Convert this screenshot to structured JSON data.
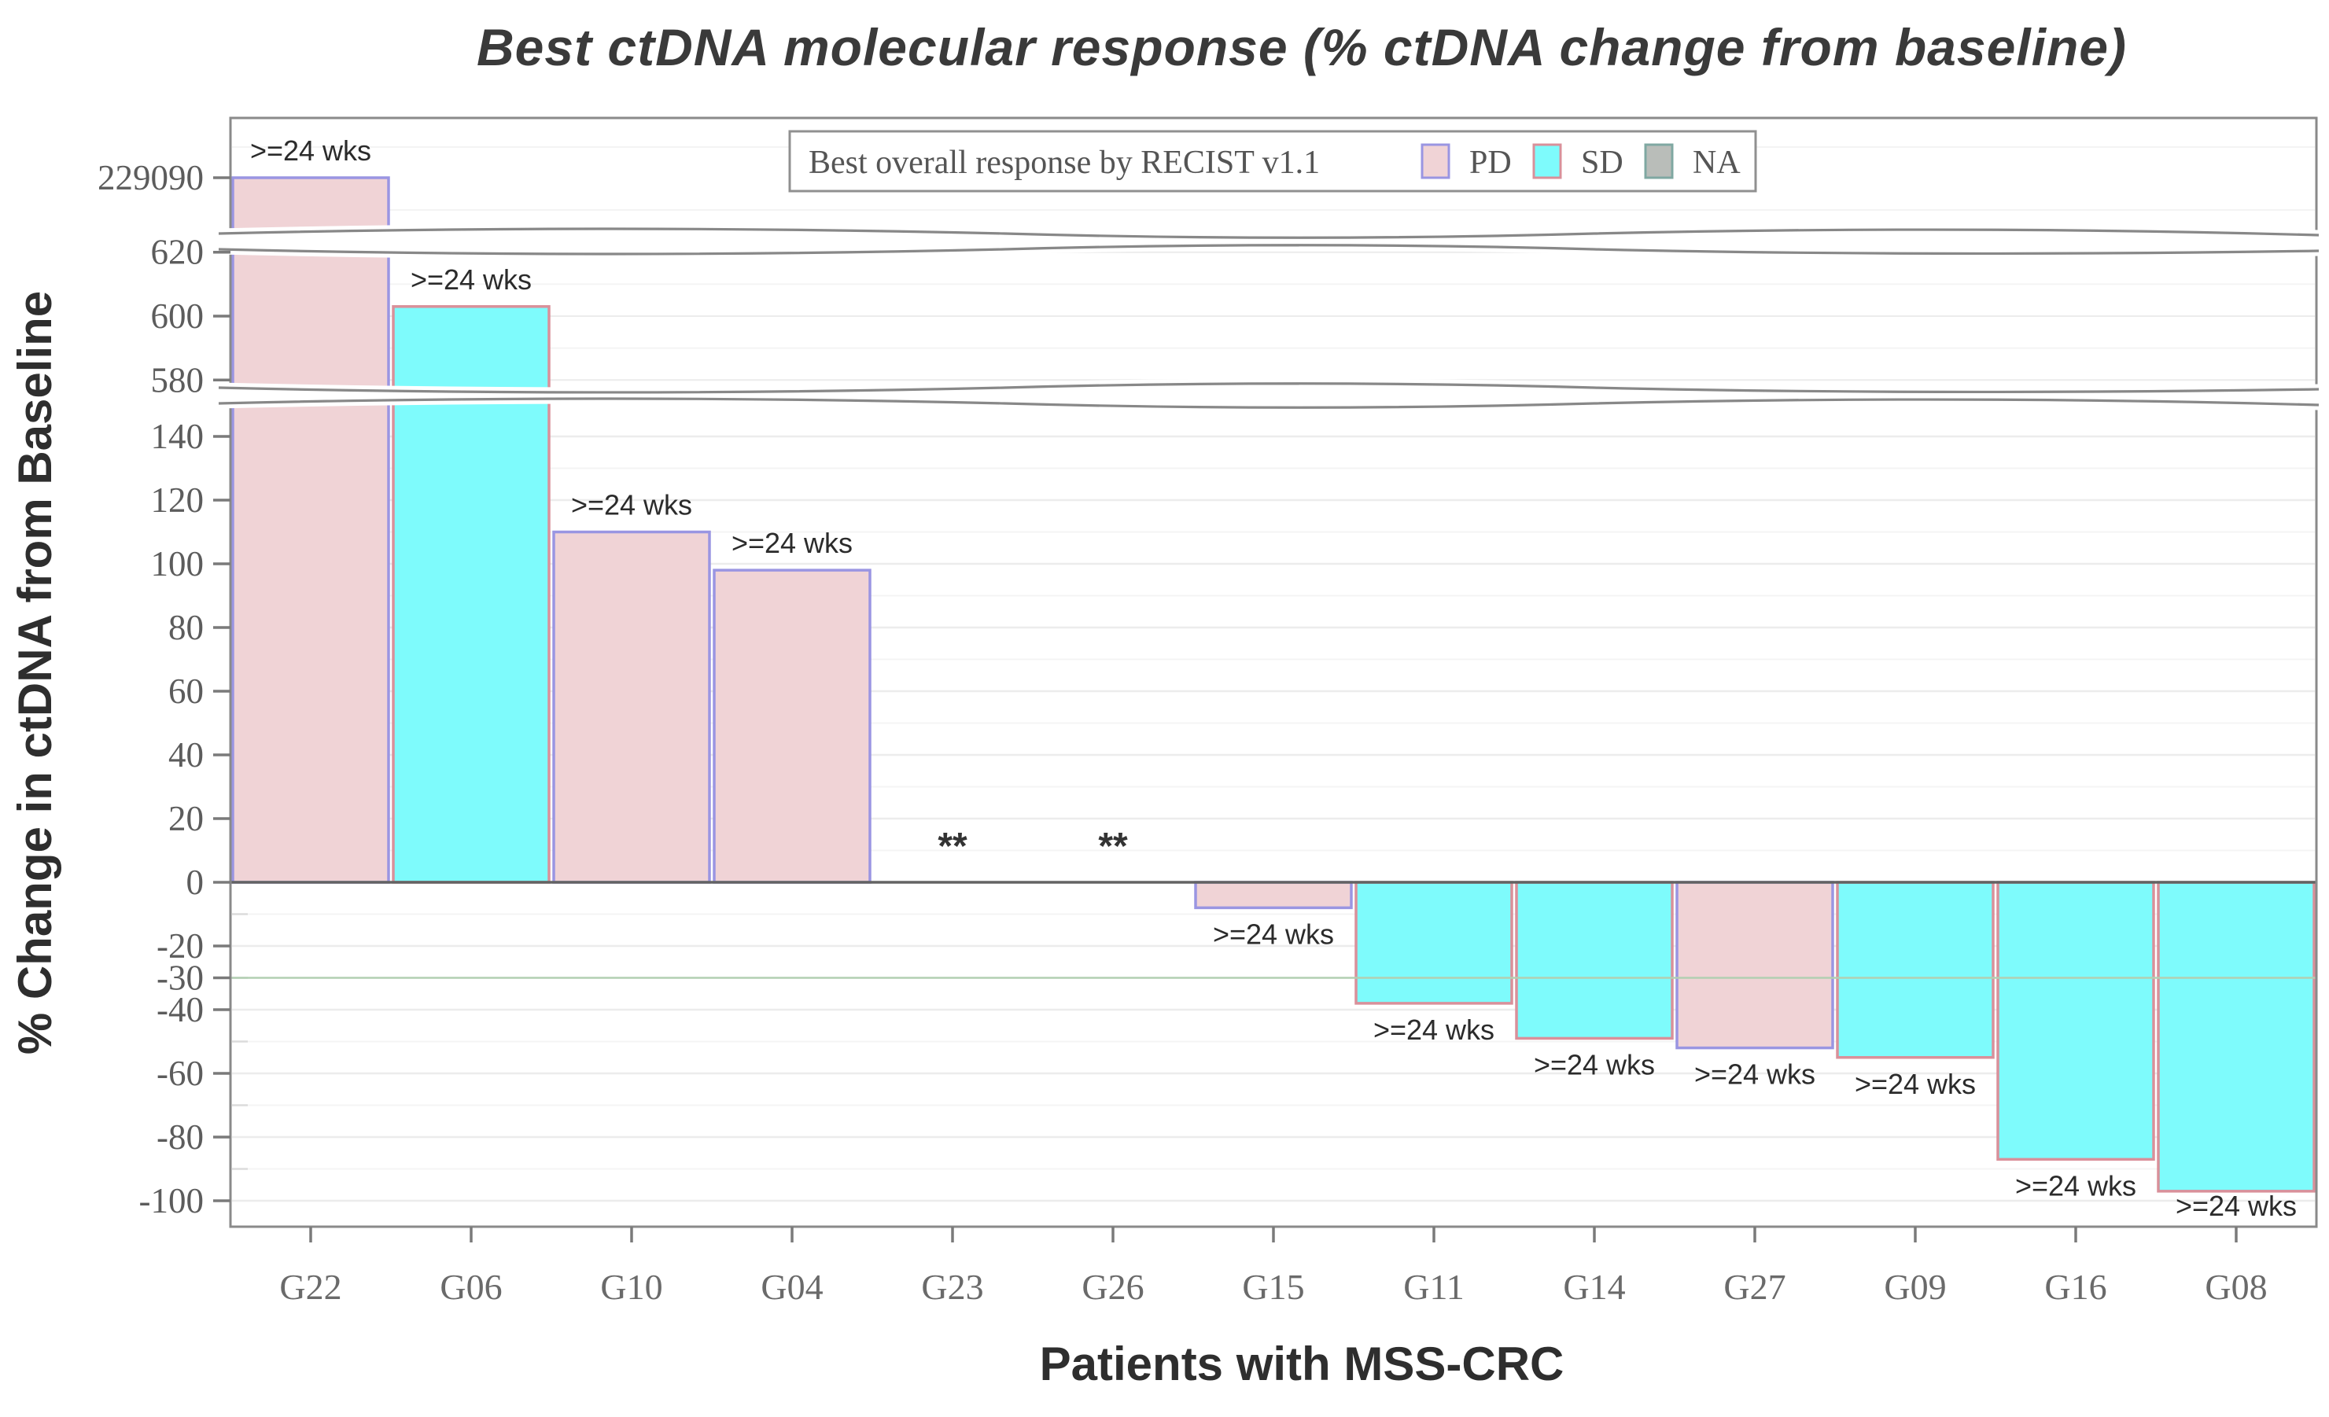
{
  "title": "Best ctDNA molecular response (% ctDNA change from baseline)",
  "y_axis_title": "% Change in ctDNA from Baseline",
  "x_axis_title": "Patients with MSS-CRC",
  "chart_data": {
    "type": "bar",
    "title": "Best ctDNA molecular response (% ctDNA change from baseline)",
    "xlabel": "Patients with MSS-CRC",
    "ylabel": "% Change in ctDNA from Baseline",
    "broken_axis": true,
    "axis_break_note": "y axis has two wavy breaks: one between 140 and 580, one between 620 and 229090",
    "y_ticks": [
      {
        "label": "229090",
        "value": 229090
      },
      {
        "label": "620",
        "value": 620
      },
      {
        "label": "600",
        "value": 600
      },
      {
        "label": "580",
        "value": 580
      },
      {
        "label": "140",
        "value": 140
      },
      {
        "label": "120",
        "value": 120
      },
      {
        "label": "100",
        "value": 100
      },
      {
        "label": "80",
        "value": 80
      },
      {
        "label": "60",
        "value": 60
      },
      {
        "label": "40",
        "value": 40
      },
      {
        "label": "20",
        "value": 20
      },
      {
        "label": "0",
        "value": 0
      },
      {
        "label": "-20",
        "value": -20
      },
      {
        "label": "-30",
        "value": -30
      },
      {
        "label": "-40",
        "value": -40
      },
      {
        "label": "-60",
        "value": -60
      },
      {
        "label": "-80",
        "value": -80
      },
      {
        "label": "-100",
        "value": -100
      }
    ],
    "reference_line": {
      "value": -30,
      "color": "#b2cfb2"
    },
    "categories": [
      "G22",
      "G06",
      "G10",
      "G04",
      "G23",
      "G26",
      "G15",
      "G11",
      "G14",
      "G27",
      "G09",
      "G16",
      "G08"
    ],
    "series": [
      {
        "patient": "G22",
        "value": 229090,
        "response": "PD",
        "annotation": ">=24 wks"
      },
      {
        "patient": "G06",
        "value": 603,
        "response": "SD",
        "annotation": ">=24 wks"
      },
      {
        "patient": "G10",
        "value": 110,
        "response": "PD",
        "annotation": ">=24 wks"
      },
      {
        "patient": "G04",
        "value": 98,
        "response": "PD",
        "annotation": ">=24 wks"
      },
      {
        "patient": "G23",
        "value": null,
        "response": "NA",
        "annotation": "**"
      },
      {
        "patient": "G26",
        "value": null,
        "response": "NA",
        "annotation": "**"
      },
      {
        "patient": "G15",
        "value": -8,
        "response": "PD",
        "annotation": ">=24 wks"
      },
      {
        "patient": "G11",
        "value": -38,
        "response": "SD",
        "annotation": ">=24 wks"
      },
      {
        "patient": "G14",
        "value": -49,
        "response": "SD",
        "annotation": ">=24 wks"
      },
      {
        "patient": "G27",
        "value": -52,
        "response": "PD",
        "annotation": ">=24 wks"
      },
      {
        "patient": "G09",
        "value": -55,
        "response": "SD",
        "annotation": ">=24 wks"
      },
      {
        "patient": "G16",
        "value": -87,
        "response": "SD",
        "annotation": ">=24 wks"
      },
      {
        "patient": "G08",
        "value": -97,
        "response": "SD",
        "annotation": ">=24 wks"
      }
    ],
    "legend": {
      "position": "top-right-inside",
      "title": "Best overall response by RECIST v1.1",
      "entries": [
        {
          "label": "PD",
          "fill": "#f0d3d6",
          "stroke": "#9a95e2"
        },
        {
          "label": "SD",
          "fill": "#7efbfc",
          "stroke": "#d9909a"
        },
        {
          "label": "NA",
          "fill": "#b9bdb9",
          "stroke": "#7fa8a2"
        }
      ]
    },
    "colors": {
      "pd_fill": "#f0d3d6",
      "pd_stroke": "#9a95e2",
      "sd_fill": "#7efbfc",
      "sd_stroke": "#d9909a",
      "na_fill": "#b9bdb9",
      "na_stroke": "#7fa8a2",
      "panel_border": "#8a8a8a",
      "zero_line": "#636363",
      "grid_major": "#ececec",
      "grid_minor": "#f4f4f4",
      "tick_color": "#7a7a7a"
    },
    "grid": true,
    "ylim_main": [
      -110,
      150
    ]
  }
}
